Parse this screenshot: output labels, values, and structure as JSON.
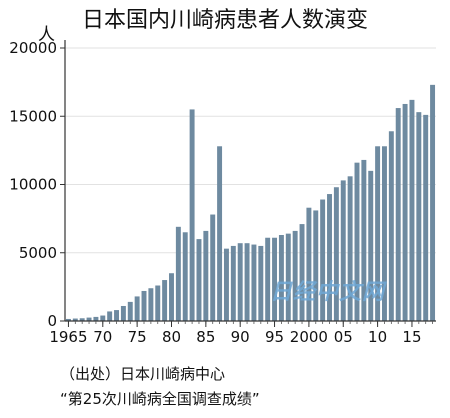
{
  "chart_data": {
    "type": "bar",
    "title": "日本国内川崎病患者人数演变",
    "ylabel": "人",
    "xlabel": "",
    "ylim": [
      0,
      20000
    ],
    "yticks": [
      0,
      5000,
      10000,
      15000,
      20000
    ],
    "xtick_labels": [
      {
        "year": 1965,
        "label": "1965"
      },
      {
        "year": 1970,
        "label": "70"
      },
      {
        "year": 1975,
        "label": "75"
      },
      {
        "year": 1980,
        "label": "80"
      },
      {
        "year": 1985,
        "label": "85"
      },
      {
        "year": 1990,
        "label": "90"
      },
      {
        "year": 1995,
        "label": "95"
      },
      {
        "year": 2000,
        "label": "2000"
      },
      {
        "year": 2005,
        "label": "05"
      },
      {
        "year": 2010,
        "label": "10"
      },
      {
        "year": 2015,
        "label": "15"
      }
    ],
    "grid": true,
    "bar_color": "#6e8aa0",
    "x": [
      1965,
      1966,
      1967,
      1968,
      1969,
      1970,
      1971,
      1972,
      1973,
      1974,
      1975,
      1976,
      1977,
      1978,
      1979,
      1980,
      1981,
      1982,
      1983,
      1984,
      1985,
      1986,
      1987,
      1988,
      1989,
      1990,
      1991,
      1992,
      1993,
      1994,
      1995,
      1996,
      1997,
      1998,
      1999,
      2000,
      2001,
      2002,
      2003,
      2004,
      2005,
      2006,
      2007,
      2008,
      2009,
      2010,
      2011,
      2012,
      2013,
      2014,
      2015,
      2016,
      2017,
      2018
    ],
    "values": [
      150,
      180,
      200,
      250,
      300,
      400,
      700,
      800,
      1100,
      1400,
      1800,
      2200,
      2400,
      2600,
      3000,
      3500,
      6900,
      6500,
      15500,
      6000,
      6600,
      7800,
      12800,
      5300,
      5500,
      5700,
      5700,
      5600,
      5500,
      6100,
      6100,
      6300,
      6400,
      6600,
      7100,
      8300,
      8100,
      8900,
      9300,
      9800,
      10300,
      10600,
      11600,
      11800,
      11000,
      12800,
      12800,
      13900,
      15600,
      15900,
      16200,
      15300,
      15100,
      17300
    ]
  },
  "watermark": "日经中文网",
  "source_line1": "（出处）日本川崎病中心",
  "source_line2": "“第25次川崎病全国调查成绩”"
}
